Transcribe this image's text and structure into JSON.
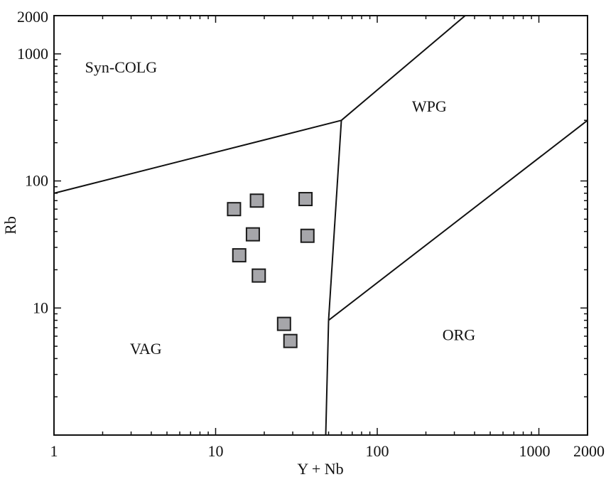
{
  "chart_data": {
    "type": "scatter",
    "x_scale": "log",
    "y_scale": "log",
    "xlim": [
      1,
      2000
    ],
    "ylim": [
      1,
      2000
    ],
    "xlabel": "Y + Nb",
    "ylabel": "Rb",
    "grid": false,
    "x_ticks": [
      {
        "value": 1,
        "label": "1"
      },
      {
        "value": 10,
        "label": "10"
      },
      {
        "value": 100,
        "label": "100"
      },
      {
        "value": 1000,
        "label": "1000"
      },
      {
        "value": 2000,
        "label": "2000"
      }
    ],
    "y_ticks": [
      {
        "value": 10,
        "label": "10"
      },
      {
        "value": 100,
        "label": "100"
      },
      {
        "value": 1000,
        "label": "1000"
      },
      {
        "value": 2000,
        "label": "2000"
      }
    ],
    "fields": [
      {
        "label": "Syn-COLG",
        "x": 2.6,
        "y": 790
      },
      {
        "label": "WPG",
        "x": 210,
        "y": 390
      },
      {
        "label": "VAG",
        "x": 3.7,
        "y": 4.8
      },
      {
        "label": "ORG",
        "x": 320,
        "y": 6.2
      }
    ],
    "boundaries": [
      {
        "name": "syn-colg-vag",
        "points": [
          [
            1,
            80
          ],
          [
            60,
            300
          ]
        ]
      },
      {
        "name": "syn-colg-wpg",
        "points": [
          [
            60,
            300
          ],
          [
            350,
            2000
          ]
        ]
      },
      {
        "name": "vag-wpg",
        "points": [
          [
            60,
            300
          ],
          [
            50,
            8
          ]
        ]
      },
      {
        "name": "vag-org",
        "points": [
          [
            50,
            8
          ],
          [
            48,
            1
          ]
        ]
      },
      {
        "name": "wpg-org",
        "points": [
          [
            50,
            8
          ],
          [
            2000,
            300
          ]
        ]
      }
    ],
    "points": [
      {
        "x": 13,
        "y": 60
      },
      {
        "x": 18,
        "y": 70
      },
      {
        "x": 36,
        "y": 72
      },
      {
        "x": 17,
        "y": 38
      },
      {
        "x": 37,
        "y": 37
      },
      {
        "x": 14,
        "y": 26
      },
      {
        "x": 18.5,
        "y": 18
      },
      {
        "x": 26.5,
        "y": 7.5
      },
      {
        "x": 29,
        "y": 5.5
      }
    ]
  }
}
